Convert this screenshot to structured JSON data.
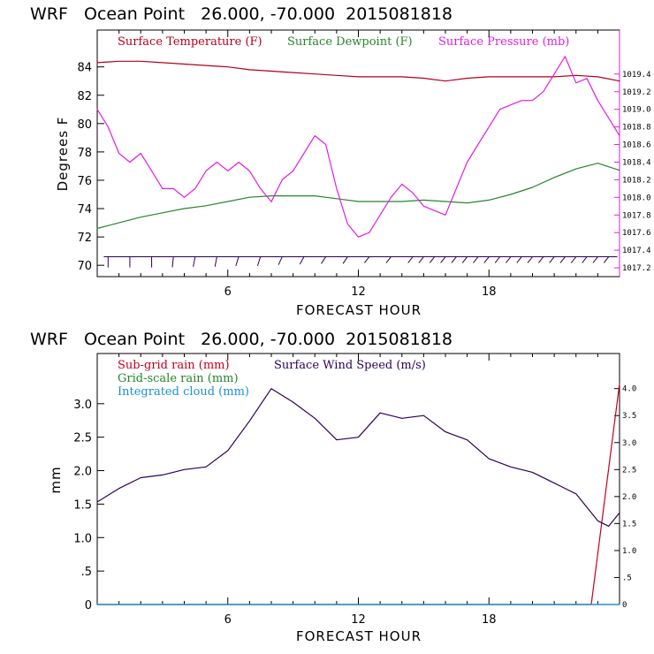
{
  "colors": {
    "temperature": "#b2001b",
    "dewpoint": "#27852b",
    "pressure": "#e01ee0",
    "subgrid_rain": "#c4001e",
    "gridscale_rain": "#22862a",
    "cloud": "#1a90d8",
    "wind_speed": "#2c0058",
    "wind_barb": "#2a0050",
    "axes": "#000000"
  },
  "chart_data": [
    {
      "type": "line",
      "title": "WRF   Ocean Point   26.000, -70.000  2015081818",
      "xlabel": "FORECAST HOUR",
      "ylabel": "Degrees F",
      "xlim": [
        0,
        24
      ],
      "ylim": [
        69.2,
        86.6
      ],
      "x_ticks": [
        6,
        12,
        18
      ],
      "x_tick_labels": [
        "6",
        "12",
        "18"
      ],
      "y_ticks": [
        70,
        72,
        74,
        76,
        78,
        80,
        82,
        84
      ],
      "y_tick_labels": [
        "70",
        "72",
        "74",
        "76",
        "78",
        "80",
        "82",
        "84"
      ],
      "y2_label": "",
      "y2lim": [
        1017.1,
        1019.9
      ],
      "y2_ticks": [
        1017.2,
        1017.4,
        1017.6,
        1017.8,
        1018.0,
        1018.2,
        1018.4,
        1018.6,
        1018.8,
        1019.0,
        1019.2,
        1019.4
      ],
      "y2_tick_labels": [
        "1017.2",
        "1017.4",
        "1017.6",
        "1017.8",
        "1018.0",
        "1018.2",
        "1018.4",
        "1018.6",
        "1018.8",
        "1019.0",
        "1019.2",
        "1019.4"
      ],
      "legend_placement": "top",
      "series": [
        {
          "name": "Surface Temperature (F)",
          "axis": "left",
          "x": [
            0,
            1,
            2,
            3,
            4,
            5,
            6,
            7,
            8,
            9,
            10,
            11,
            12,
            13,
            14,
            15,
            16,
            17,
            18,
            19,
            20,
            21,
            22,
            23,
            24
          ],
          "y": [
            84.3,
            84.4,
            84.4,
            84.3,
            84.2,
            84.1,
            84.0,
            83.8,
            83.7,
            83.6,
            83.5,
            83.4,
            83.3,
            83.3,
            83.3,
            83.2,
            83.0,
            83.2,
            83.3,
            83.3,
            83.3,
            83.3,
            83.4,
            83.3,
            83.0
          ]
        },
        {
          "name": "Surface Dewpoint (F)",
          "axis": "left",
          "x": [
            0,
            1,
            2,
            3,
            4,
            5,
            6,
            7,
            8,
            9,
            10,
            11,
            12,
            13,
            14,
            15,
            16,
            17,
            18,
            19,
            20,
            21,
            22,
            23,
            24
          ],
          "y": [
            72.6,
            73.0,
            73.4,
            73.7,
            74.0,
            74.2,
            74.5,
            74.8,
            74.9,
            74.9,
            74.9,
            74.7,
            74.5,
            74.5,
            74.5,
            74.6,
            74.5,
            74.4,
            74.6,
            75.0,
            75.5,
            76.2,
            76.8,
            77.2,
            76.7
          ]
        },
        {
          "name": "Surface Pressure (mb)",
          "axis": "right",
          "x": [
            0,
            0.5,
            1,
            1.5,
            2,
            2.5,
            3,
            3.5,
            4,
            4.5,
            5,
            5.5,
            6,
            6.5,
            7,
            7.5,
            8,
            8.5,
            9,
            9.5,
            10,
            10.5,
            11,
            11.5,
            12,
            12.5,
            13,
            13.5,
            14,
            14.5,
            15,
            15.5,
            16,
            16.5,
            17,
            17.5,
            18,
            18.5,
            19,
            19.5,
            20,
            20.5,
            21,
            21.5,
            22,
            22.5,
            23,
            23.5,
            24
          ],
          "y": [
            1019.0,
            1018.8,
            1018.5,
            1018.4,
            1018.5,
            1018.3,
            1018.1,
            1018.1,
            1018.0,
            1018.1,
            1018.3,
            1018.4,
            1018.3,
            1018.4,
            1018.3,
            1018.1,
            1017.95,
            1018.2,
            1018.3,
            1018.5,
            1018.7,
            1018.6,
            1018.1,
            1017.7,
            1017.55,
            1017.6,
            1017.8,
            1018.0,
            1018.15,
            1018.05,
            1017.9,
            1017.85,
            1017.8,
            1018.1,
            1018.4,
            1018.6,
            1018.8,
            1019.0,
            1019.05,
            1019.1,
            1019.1,
            1019.2,
            1019.4,
            1019.6,
            1019.3,
            1019.35,
            1019.1,
            1018.9,
            1018.7
          ]
        },
        {
          "name": "Surface Wind (barbs)",
          "type": "barb",
          "x": [
            0.5,
            1.5,
            2.5,
            3.5,
            4.5,
            5.5,
            6.5,
            7.5,
            8.5,
            9.5,
            10.5,
            11.5,
            12.5,
            13.5,
            14.5,
            15,
            15.5,
            16,
            16.5,
            17,
            17.5,
            18,
            18.5,
            19,
            19.5,
            20,
            20.5,
            21,
            21.5,
            22,
            22.5,
            23,
            23.5
          ],
          "direction_deg": [
            90,
            90,
            90,
            80,
            70,
            70,
            60,
            60,
            50,
            45,
            40,
            40,
            35,
            35,
            35,
            35,
            35,
            35,
            35,
            35,
            35,
            35,
            35,
            35,
            35,
            35,
            35,
            35,
            35,
            35,
            35,
            35,
            35
          ]
        }
      ]
    },
    {
      "type": "line",
      "title": "WRF   Ocean Point   26.000, -70.000  2015081818",
      "xlabel": "FORECAST HOUR",
      "ylabel": "mm",
      "xlim": [
        0,
        24
      ],
      "ylim": [
        0,
        3.75
      ],
      "x_ticks": [
        6,
        12,
        18
      ],
      "x_tick_labels": [
        "6",
        "12",
        "18"
      ],
      "y_ticks": [
        0,
        0.5,
        1.0,
        1.5,
        2.0,
        2.5,
        3.0
      ],
      "y_tick_labels": [
        "0",
        ".5",
        "1.0",
        "1.5",
        "2.0",
        "2.5",
        "3.0"
      ],
      "y2_label": "",
      "y2lim": [
        0,
        4.65
      ],
      "y2_ticks": [
        0,
        0.5,
        1.0,
        1.5,
        2.0,
        2.5,
        3.0,
        3.5,
        4.0
      ],
      "y2_tick_labels": [
        "0",
        ".5",
        "1.0",
        "1.5",
        "2.0",
        "2.5",
        "3.0",
        "3.5",
        "4.0"
      ],
      "legend_placement": "top-left",
      "series": [
        {
          "name": "Sub-grid rain (mm)",
          "axis": "left",
          "x": [
            0,
            22.7,
            24
          ],
          "y": [
            0,
            0,
            3.3
          ]
        },
        {
          "name": "Grid-scale rain (mm)",
          "axis": "left",
          "x": [
            0,
            24
          ],
          "y": [
            0,
            0
          ]
        },
        {
          "name": "Integrated cloud (mm)",
          "axis": "left",
          "x": [
            0,
            24
          ],
          "y": [
            0,
            0
          ]
        },
        {
          "name": "Surface Wind Speed (m/s)",
          "axis": "right",
          "x": [
            0,
            1,
            2,
            3,
            4,
            5,
            6,
            7,
            8,
            9,
            10,
            11,
            12,
            13,
            14,
            15,
            16,
            17,
            18,
            19,
            20,
            21,
            22,
            23,
            23.5,
            24
          ],
          "y": [
            1.9,
            2.15,
            2.35,
            2.4,
            2.5,
            2.55,
            2.85,
            3.4,
            4.0,
            3.75,
            3.45,
            3.05,
            3.1,
            3.55,
            3.45,
            3.5,
            3.2,
            3.05,
            2.7,
            2.55,
            2.45,
            2.25,
            2.05,
            1.55,
            1.45,
            1.7
          ]
        }
      ]
    }
  ]
}
